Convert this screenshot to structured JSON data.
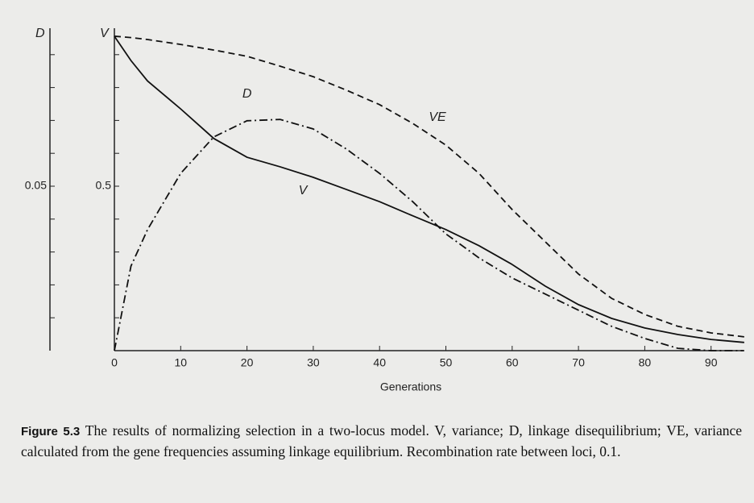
{
  "chart_data": {
    "type": "line",
    "x_label": "Generations",
    "y_label": "V",
    "y2_label": "D",
    "x": [
      0,
      2.5,
      5,
      10,
      15,
      20,
      25,
      30,
      35,
      40,
      45,
      50,
      55,
      60,
      65,
      70,
      75,
      80,
      85,
      90,
      95
    ],
    "series": [
      {
        "name": "V",
        "color": "#111111",
        "dash": "solid",
        "values": [
          0.956,
          0.882,
          0.82,
          0.735,
          0.645,
          0.588,
          0.559,
          0.527,
          0.49,
          0.453,
          0.41,
          0.368,
          0.319,
          0.262,
          0.196,
          0.14,
          0.098,
          0.069,
          0.049,
          0.034,
          0.025
        ]
      },
      {
        "name": "D",
        "color": "#111111",
        "dash": "dashdot",
        "axis": "y2",
        "values": [
          0,
          0.0257,
          0.0368,
          0.0539,
          0.065,
          0.0699,
          0.0703,
          0.0674,
          0.0613,
          0.0539,
          0.0453,
          0.0355,
          0.0282,
          0.0221,
          0.0172,
          0.0123,
          0.0074,
          0.0037,
          0.0007,
          0,
          0
        ]
      },
      {
        "name": "VE",
        "color": "#111111",
        "dash": "dashed",
        "values": [
          0.956,
          0.952,
          0.946,
          0.931,
          0.914,
          0.895,
          0.865,
          0.833,
          0.792,
          0.748,
          0.691,
          0.625,
          0.539,
          0.429,
          0.331,
          0.233,
          0.159,
          0.11,
          0.074,
          0.054,
          0.042
        ]
      }
    ],
    "xlim": [
      0,
      95
    ],
    "xticks": [
      0,
      10,
      20,
      30,
      40,
      50,
      60,
      70,
      80,
      90
    ],
    "ylim": [
      0,
      1
    ],
    "yticks": [
      0.5
    ],
    "y_minor_ticks": [
      0.1,
      0.2,
      0.3,
      0.4,
      0.6,
      0.7,
      0.8,
      0.9
    ],
    "y2lim": [
      0,
      0.1
    ],
    "y2ticks": [
      0.05
    ],
    "y2_minor_ticks": [
      0.01,
      0.02,
      0.03,
      0.04,
      0.06,
      0.07,
      0.08,
      0.09
    ],
    "caption_label": "Figure 5.3",
    "caption": "The results of normalizing selection in a two-locus model. V, variance; D, linkage disequilibrium; VE, variance calculated from the gene frequencies assuming linkage equilibrium. Recombination rate between loci, 0.1."
  }
}
